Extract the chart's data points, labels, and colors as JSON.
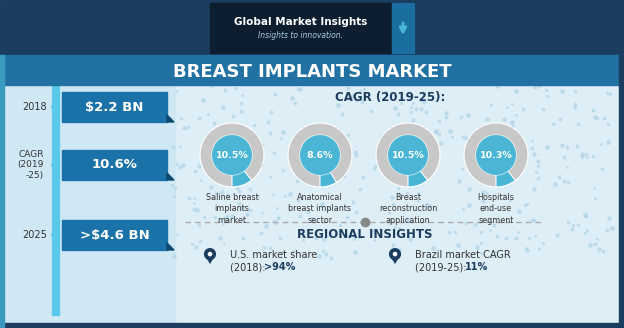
{
  "title": "BREAST IMPLANTS MARKET",
  "header_bg": "#1b3d5f",
  "title_bar_bg": "#2271a3",
  "main_bg": "#ddeef6",
  "left_bg": "#c5e0ee",
  "logo_text": "Global Market Insights",
  "logo_sub": "Insights to innovation.",
  "cagr_title": "CAGR (2019-25):",
  "val_2018": "$2.2 BN",
  "val_cagr": "10.6%",
  "val_2025": ">$4.6 BN",
  "year_2018": "2018",
  "year_cagr": "CAGR\n(2019\n-25)",
  "year_2025": "2025",
  "donut_values": [
    10.5,
    8.6,
    10.5,
    10.3
  ],
  "donut_labels": [
    "10.5%",
    "8.6%",
    "10.5%",
    "10.3%"
  ],
  "donut_sublabels": [
    "Saline breast\nimplants\nmarket",
    "Anatomical\nbreast implants\nsector",
    "Breast\nreconstruction\napplication",
    "Hospitals\nend-use\nsegment"
  ],
  "donut_fill": "#4ab5d5",
  "donut_bg": "#c8c8c8",
  "donut_inner": "#4ab5d5",
  "box_color": "#1a72a8",
  "box_fold_color": "#0d4a70",
  "timeline_color": "#5ac8e8",
  "accent_teal": "#4ab5d5",
  "dark_blue": "#1b3d5f",
  "dashed_color": "#aaaaaa",
  "regional_title": "REGIONAL INSIGHTS",
  "us_text1": "U.S. market share",
  "us_text2": "(2018): ",
  "us_bold": ">94%",
  "br_text1": "Brazil market CAGR",
  "br_text2": "(2019-25): ",
  "br_bold": "11%",
  "pin_color": "#1b3d5f"
}
